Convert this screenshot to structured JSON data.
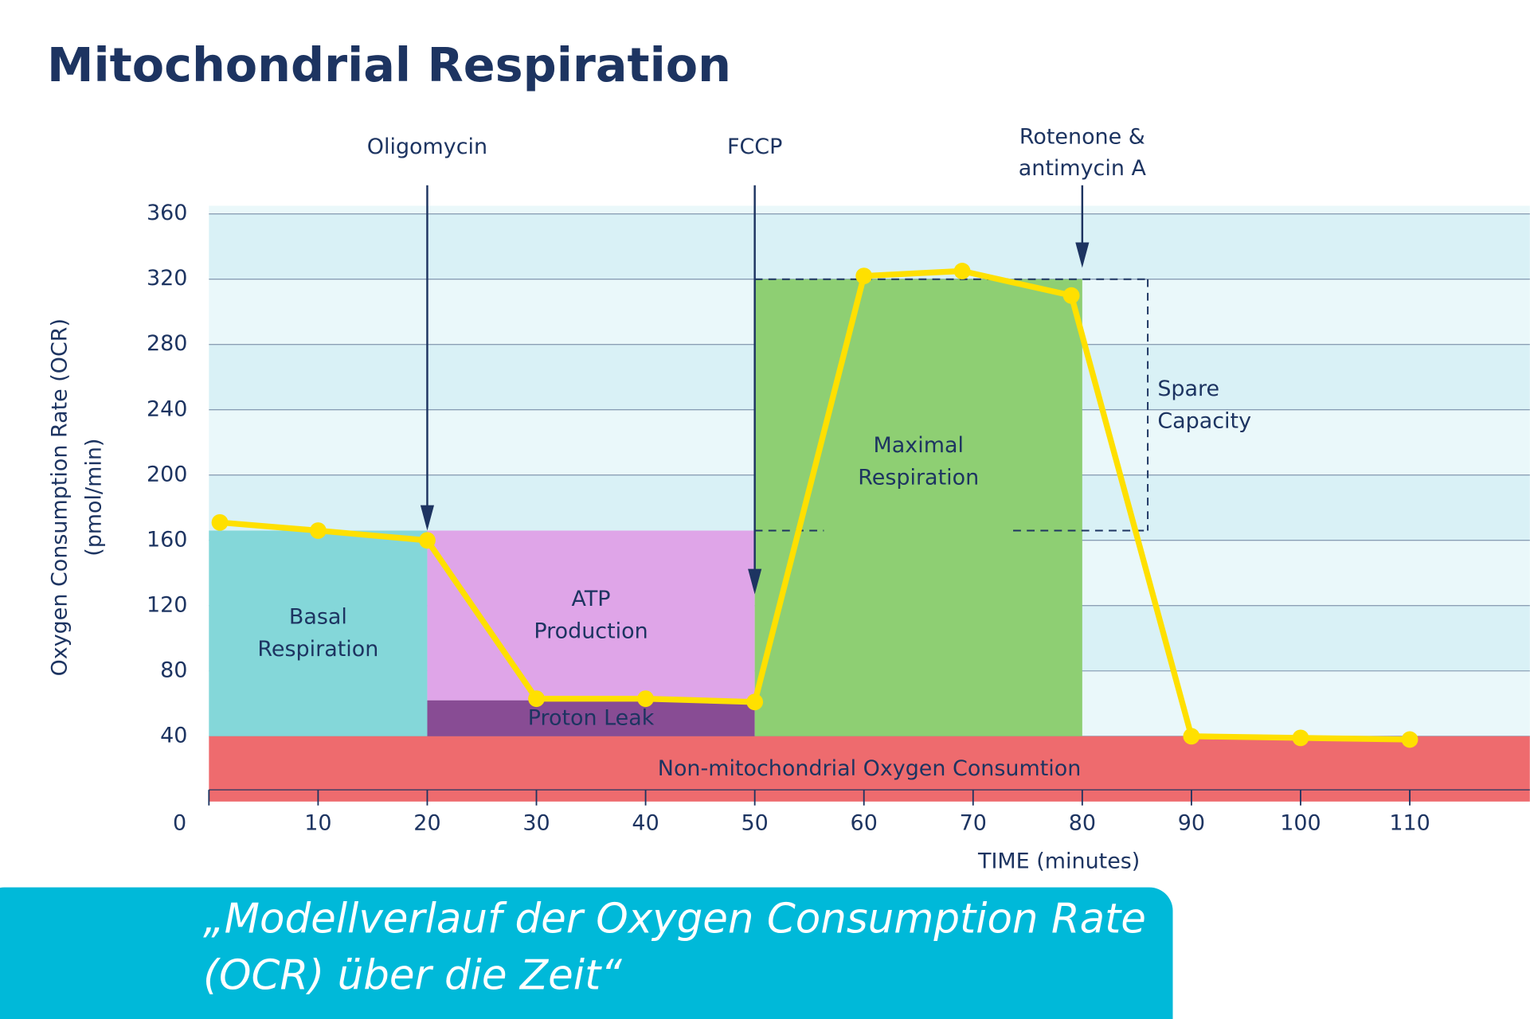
{
  "chart_data": {
    "type": "line",
    "title": "Mitochondrial Respiration",
    "x_label": "TIME (minutes)",
    "y_label": [
      "Oxygen Consumption Rate (OCR)",
      "(pmol/min)"
    ],
    "xlim": [
      0,
      121
    ],
    "ylim": [
      0,
      365
    ],
    "xticks": [
      0,
      10,
      20,
      30,
      40,
      50,
      60,
      70,
      80,
      90,
      100,
      110
    ],
    "yticks": [
      40,
      80,
      120,
      160,
      200,
      240,
      280,
      320,
      360
    ],
    "grid": true,
    "x": [
      1,
      10,
      20,
      30,
      40,
      50,
      60,
      69,
      79,
      90,
      100,
      110
    ],
    "series": [
      {
        "color": "#ffe000",
        "values": [
          171,
          166,
          160,
          63,
          63,
          61,
          322,
          325,
          310,
          40,
          39,
          38
        ]
      }
    ],
    "regions": [
      {
        "label": [
          "Basal",
          "Respiration"
        ],
        "color": "#84d7d9",
        "x": [
          0,
          20
        ],
        "y": [
          40,
          166
        ]
      },
      {
        "label": [
          "ATP",
          "Production"
        ],
        "color": "#dfa5e8",
        "x": [
          20,
          50
        ],
        "y": [
          62,
          166
        ]
      },
      {
        "label": [
          "Proton Leak"
        ],
        "color": "#884c94",
        "x": [
          20,
          50
        ],
        "y": [
          40,
          62
        ]
      },
      {
        "label": [
          "Maximal",
          "Respiration"
        ],
        "color": "#8ecf73",
        "x": [
          50,
          80
        ],
        "y": [
          40,
          320
        ]
      },
      {
        "label": [
          "Non-mitochondrial Oxygen Consumtion"
        ],
        "color": "#ee6b6e",
        "x": [
          0,
          121
        ],
        "y": [
          0,
          40
        ]
      }
    ],
    "spare_capacity": {
      "label": [
        "Spare",
        "Capacity"
      ],
      "x": [
        50,
        86
      ],
      "y": [
        166,
        320
      ]
    },
    "injections": [
      {
        "label": [
          "Oligomycin"
        ],
        "x": 20,
        "y": 166
      },
      {
        "label": [
          "FCCP"
        ],
        "x": 50,
        "y": 127
      },
      {
        "label": [
          "Rotenone &",
          "antimycin A"
        ],
        "x": 80,
        "y": 327
      }
    ]
  },
  "caption": [
    "„Modellverlauf der Oxygen Consumption Rate",
    "(OCR) über die Zeit“"
  ]
}
